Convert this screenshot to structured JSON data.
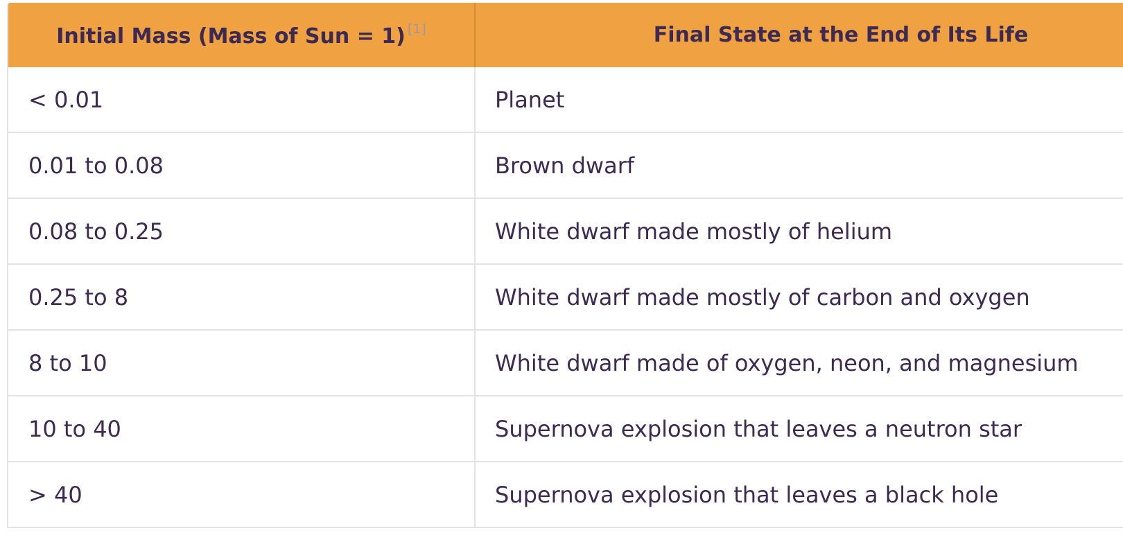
{
  "table": {
    "headers": {
      "mass": "Initial Mass (Mass of Sun = 1)",
      "mass_ref": "[1]",
      "state": "Final State at the End of Its Life"
    },
    "rows": [
      {
        "mass": "< 0.01",
        "state": "Planet"
      },
      {
        "mass": "0.01 to 0.08",
        "state": "Brown dwarf"
      },
      {
        "mass": "0.08 to 0.25",
        "state": "White dwarf made mostly of helium"
      },
      {
        "mass": "0.25 to 8",
        "state": "White dwarf made mostly of carbon and oxygen"
      },
      {
        "mass": "8 to 10",
        "state": "White dwarf made of oxygen, neon, and magnesium"
      },
      {
        "mass": "10 to 40",
        "state": "Supernova explosion that leaves a neutron star"
      },
      {
        "mass": "> 40",
        "state": "Supernova explosion that leaves a black hole"
      }
    ]
  },
  "colors": {
    "header_background": "#f0a142",
    "text": "#3d2a52",
    "grid_lines": "#e3e3e3",
    "reference_link": "#9a98a8"
  }
}
